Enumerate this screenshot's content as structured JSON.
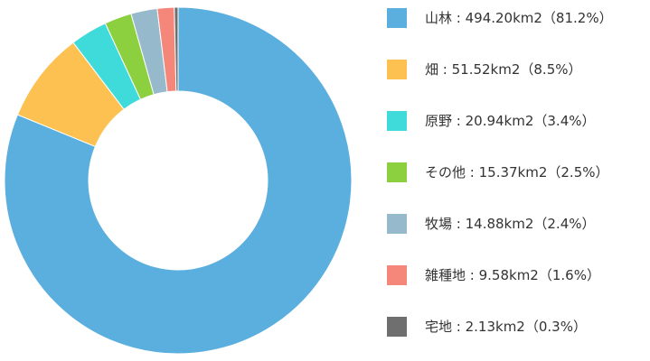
{
  "chart_data": {
    "type": "donut",
    "categories": [
      "山林",
      "畑",
      "原野",
      "その他",
      "牧場",
      "雑種地",
      "宅地"
    ],
    "values": [
      494.2,
      51.52,
      20.94,
      15.37,
      14.88,
      9.58,
      2.13
    ],
    "value_labels": [
      " : 494.20km2（81.2%）",
      " : 51.52km2（8.5%）",
      " : 20.94km2（3.4%）",
      " : 15.37km2（2.5%）",
      " : 14.88km2（2.4%）",
      " : 9.58km2（1.6%）",
      " : 2.13km2（0.3%）"
    ],
    "colors": [
      "#5aafdf",
      "#fcc151",
      "#3fdbdb",
      "#8ccf3f",
      "#96b9cc",
      "#f4877a",
      "#6f6f6f"
    ],
    "legend": "right"
  }
}
